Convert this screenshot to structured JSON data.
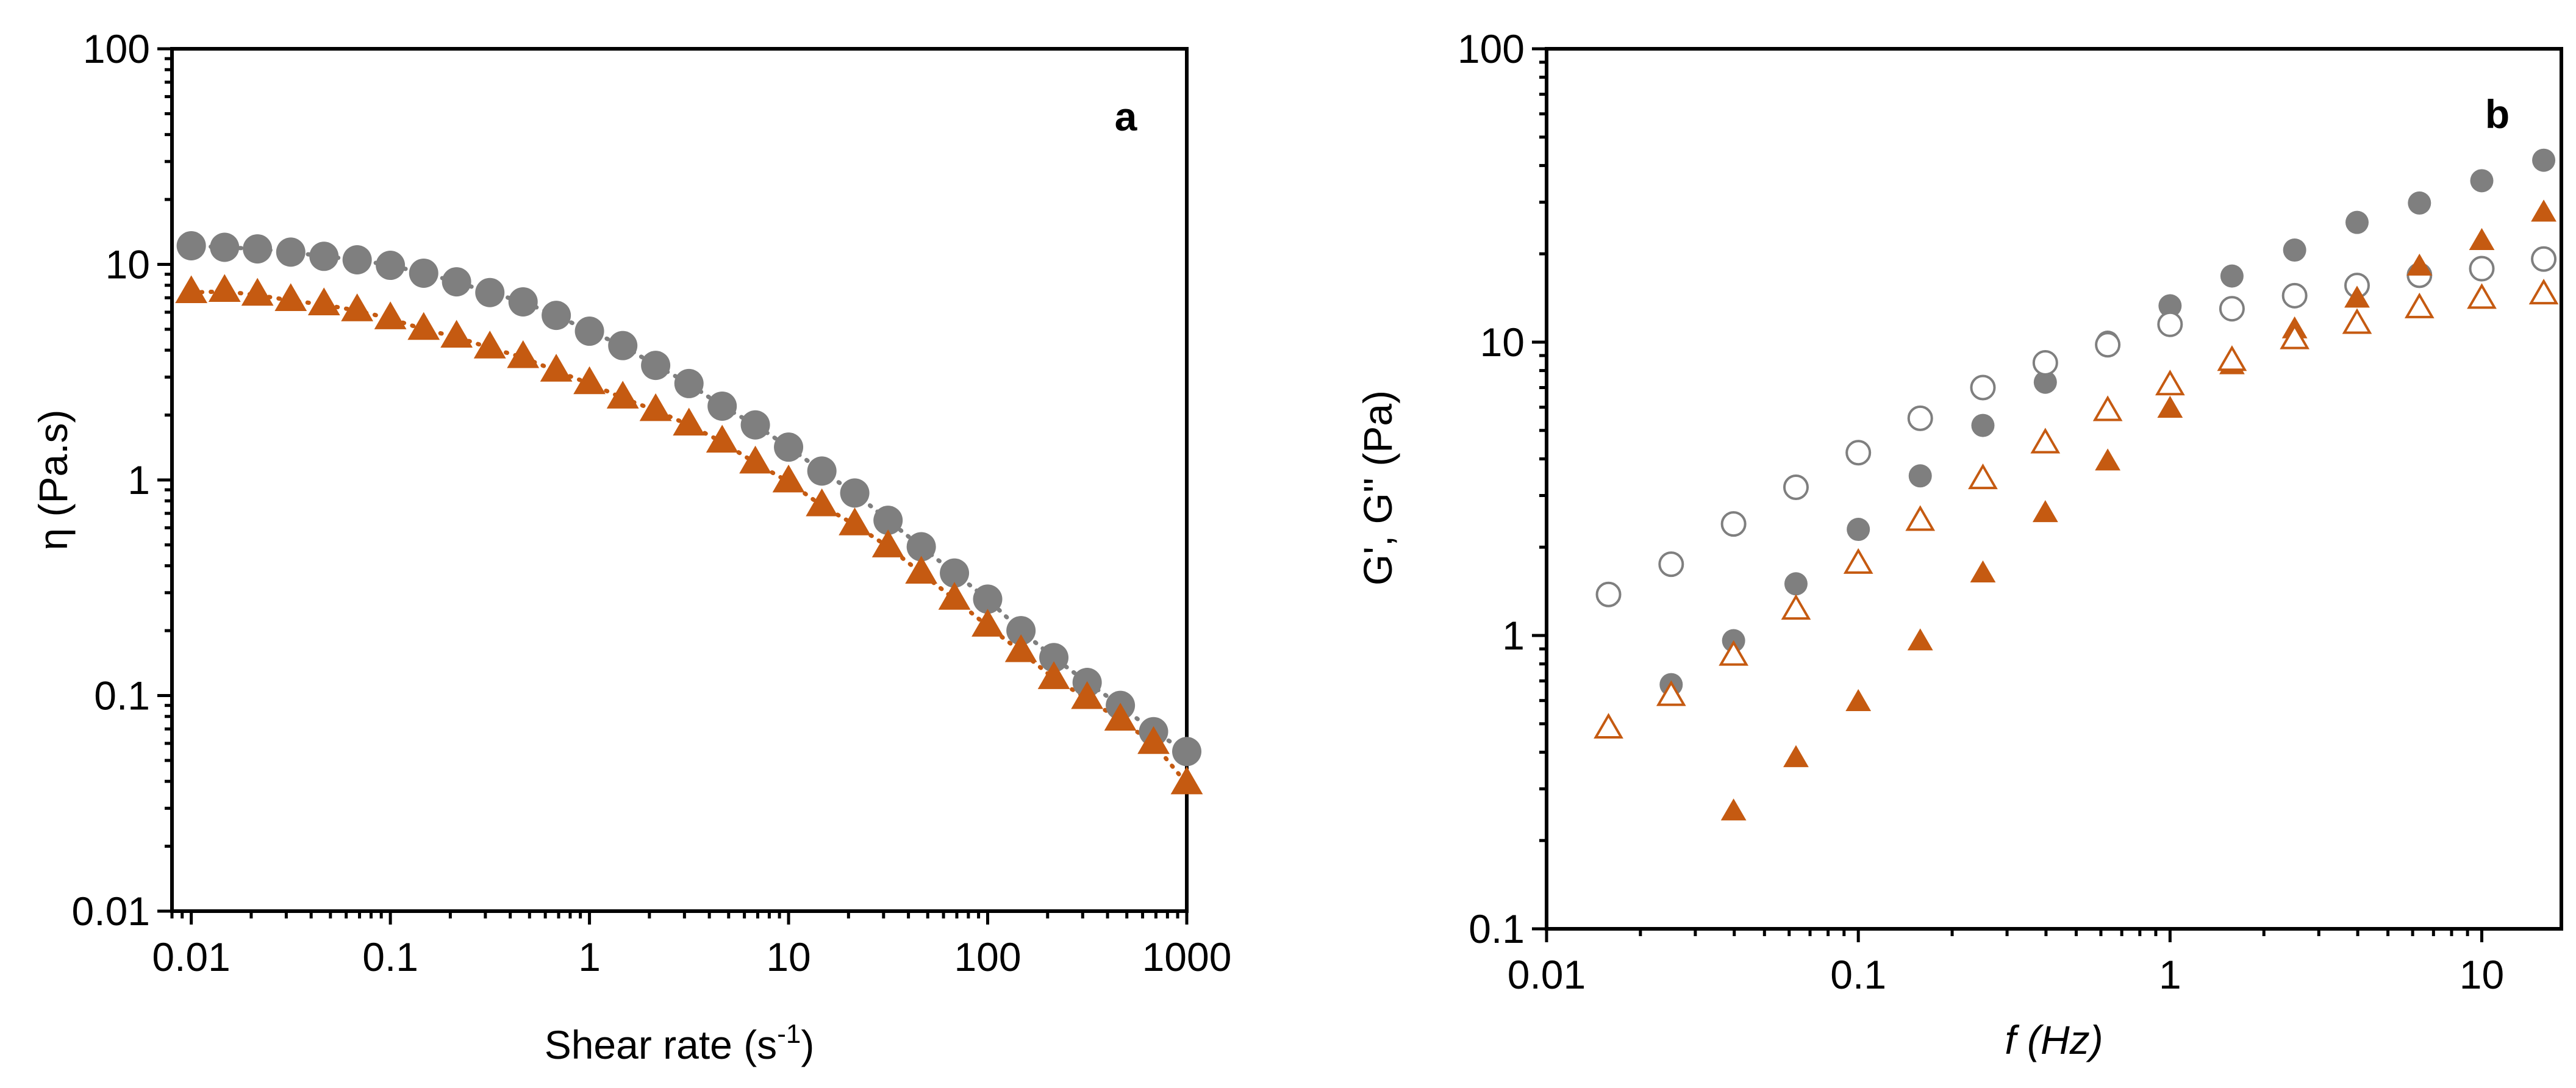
{
  "colors": {
    "grey": "#7f7f7f",
    "orange": "#c55a11",
    "axis": "#000000"
  },
  "chart_data": [
    {
      "type": "scatter",
      "panel_label": "a",
      "xlabel": "Shear rate (s-1)",
      "xlabel_main": "Shear rate (s",
      "xlabel_sup": "-1",
      "xlabel_end": ")",
      "ylabel": "η (Pa.s)",
      "xscale": "log",
      "yscale": "log",
      "xlim": [
        0.008,
        1000
      ],
      "ylim": [
        0.01,
        100
      ],
      "xticks": [
        0.01,
        0.1,
        1,
        10,
        100,
        1000
      ],
      "xtick_labels": [
        "0.01",
        "0.1",
        "1",
        "10",
        "100",
        "1000"
      ],
      "yticks": [
        0.01,
        0.1,
        1,
        10,
        100
      ],
      "ytick_labels": [
        "0.01",
        "0.1",
        "1",
        "10",
        "100"
      ],
      "series": [
        {
          "name": "grey circles",
          "marker": "circle",
          "filled": true,
          "color": "#7f7f7f",
          "fit_line": "dotted",
          "x": [
            0.01,
            0.0147,
            0.0215,
            0.0316,
            0.0464,
            0.0681,
            0.1,
            0.147,
            0.215,
            0.316,
            0.464,
            0.681,
            1,
            1.47,
            2.15,
            3.16,
            4.64,
            6.81,
            10,
            14.7,
            21.5,
            31.6,
            46.4,
            68.1,
            100,
            147,
            215,
            316,
            464,
            681,
            1000
          ],
          "y": [
            12.2,
            12.0,
            11.8,
            11.4,
            10.9,
            10.5,
            9.9,
            9.1,
            8.3,
            7.4,
            6.7,
            5.8,
            4.9,
            4.2,
            3.4,
            2.8,
            2.2,
            1.8,
            1.42,
            1.1,
            0.87,
            0.65,
            0.49,
            0.37,
            0.28,
            0.2,
            0.15,
            0.115,
            0.09,
            0.068,
            0.055
          ]
        },
        {
          "name": "orange triangles",
          "marker": "triangle",
          "filled": true,
          "color": "#c55a11",
          "fit_line": "dotted",
          "x": [
            0.01,
            0.0147,
            0.0215,
            0.0316,
            0.0464,
            0.0681,
            0.1,
            0.147,
            0.215,
            0.316,
            0.464,
            0.681,
            1,
            1.47,
            2.15,
            3.16,
            4.64,
            6.81,
            10,
            14.7,
            21.5,
            31.6,
            46.4,
            68.1,
            100,
            147,
            215,
            316,
            464,
            681,
            1000
          ],
          "y": [
            7.4,
            7.5,
            7.2,
            6.8,
            6.5,
            6.1,
            5.6,
            5.0,
            4.6,
            4.1,
            3.7,
            3.2,
            2.8,
            2.4,
            2.1,
            1.8,
            1.5,
            1.2,
            0.98,
            0.76,
            0.62,
            0.49,
            0.37,
            0.28,
            0.21,
            0.16,
            0.12,
            0.097,
            0.077,
            0.06,
            0.039
          ]
        }
      ]
    },
    {
      "type": "scatter",
      "panel_label": "b",
      "xlabel": "f (Hz)",
      "ylabel": "G', G'' (Pa)",
      "xscale": "log",
      "yscale": "log",
      "xlim": [
        0.01,
        18
      ],
      "ylim": [
        0.1,
        100
      ],
      "xticks": [
        0.01,
        0.1,
        1,
        10
      ],
      "xtick_labels": [
        "0.01",
        "0.1",
        "1",
        "10"
      ],
      "yticks": [
        0.1,
        1,
        10,
        100
      ],
      "ytick_labels": [
        "0.1",
        "1",
        "10",
        "100"
      ],
      "series": [
        {
          "name": "filled grey circles",
          "marker": "circle",
          "filled": true,
          "color": "#7f7f7f",
          "x": [
            0.0251,
            0.0398,
            0.0631,
            0.1,
            0.158,
            0.251,
            0.398,
            0.631,
            1,
            1.58,
            2.51,
            3.98,
            6.31,
            10,
            15.8
          ],
          "y": [
            0.68,
            0.96,
            1.5,
            2.3,
            3.5,
            5.2,
            7.3,
            10.0,
            13.3,
            16.8,
            20.6,
            25.6,
            29.8,
            35.5,
            41.7
          ]
        },
        {
          "name": "open grey circles",
          "marker": "circle",
          "filled": false,
          "color": "#7f7f7f",
          "x": [
            0.0158,
            0.0251,
            0.0398,
            0.0631,
            0.1,
            0.158,
            0.251,
            0.398,
            0.631,
            1,
            1.58,
            2.51,
            3.98,
            6.31,
            10,
            15.8
          ],
          "y": [
            1.38,
            1.75,
            2.4,
            3.2,
            4.2,
            5.5,
            7.0,
            8.5,
            9.8,
            11.5,
            13.0,
            14.4,
            15.6,
            16.9,
            17.8,
            19.2
          ]
        },
        {
          "name": "filled orange triangles",
          "marker": "triangle",
          "filled": true,
          "color": "#c55a11",
          "x": [
            0.0398,
            0.0631,
            0.1,
            0.158,
            0.251,
            0.398,
            0.631,
            1,
            1.58,
            2.51,
            3.98,
            6.31,
            10,
            15.8
          ],
          "y": [
            0.25,
            0.38,
            0.59,
            0.95,
            1.62,
            2.6,
            3.9,
            5.9,
            8.3,
            11.0,
            14.0,
            18.0,
            22.0,
            27.5
          ]
        },
        {
          "name": "open orange triangles",
          "marker": "triangle",
          "filled": false,
          "color": "#c55a11",
          "x": [
            0.0158,
            0.0251,
            0.0398,
            0.0631,
            0.1,
            0.158,
            0.251,
            0.398,
            0.631,
            1,
            1.58,
            2.51,
            3.98,
            6.31,
            10,
            15.8
          ],
          "y": [
            0.48,
            0.62,
            0.85,
            1.22,
            1.75,
            2.45,
            3.4,
            4.5,
            5.8,
            7.1,
            8.6,
            10.2,
            11.5,
            13.0,
            14.0,
            14.5
          ]
        }
      ]
    }
  ]
}
